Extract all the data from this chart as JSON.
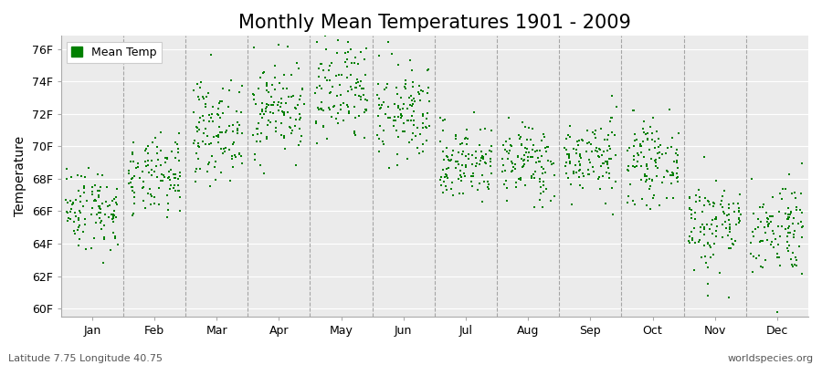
{
  "title": "Monthly Mean Temperatures 1901 - 2009",
  "ylabel": "Temperature",
  "subtitle_left": "Latitude 7.75 Longitude 40.75",
  "subtitle_right": "worldspecies.org",
  "legend_label": "Mean Temp",
  "dot_color": "#008000",
  "bg_color": "#ffffff",
  "plot_bg_color": "#ebebeb",
  "yticks": [
    60,
    62,
    64,
    66,
    68,
    70,
    72,
    74,
    76
  ],
  "ytick_labels": [
    "60F",
    "62F",
    "64F",
    "66F",
    "68F",
    "70F",
    "72F",
    "74F",
    "76F"
  ],
  "ylim": [
    59.5,
    76.8
  ],
  "months": [
    "Jan",
    "Feb",
    "Mar",
    "Apr",
    "May",
    "Jun",
    "Jul",
    "Aug",
    "Sep",
    "Oct",
    "Nov",
    "Dec"
  ],
  "monthly_means": [
    66.2,
    68.0,
    71.0,
    72.3,
    73.2,
    72.0,
    69.0,
    69.0,
    69.3,
    69.0,
    65.2,
    65.0
  ],
  "monthly_stds": [
    1.3,
    1.2,
    1.5,
    1.5,
    1.8,
    1.5,
    1.2,
    1.2,
    1.2,
    1.2,
    1.5,
    1.5
  ],
  "years": 109,
  "dot_size": 4,
  "dot_marker": "s",
  "title_fontsize": 15,
  "axis_fontsize": 10,
  "tick_fontsize": 9,
  "legend_fontsize": 9,
  "subtitle_fontsize": 8,
  "vline_color": "#888888",
  "grid_color": "#ffffff",
  "spine_color": "#aaaaaa"
}
